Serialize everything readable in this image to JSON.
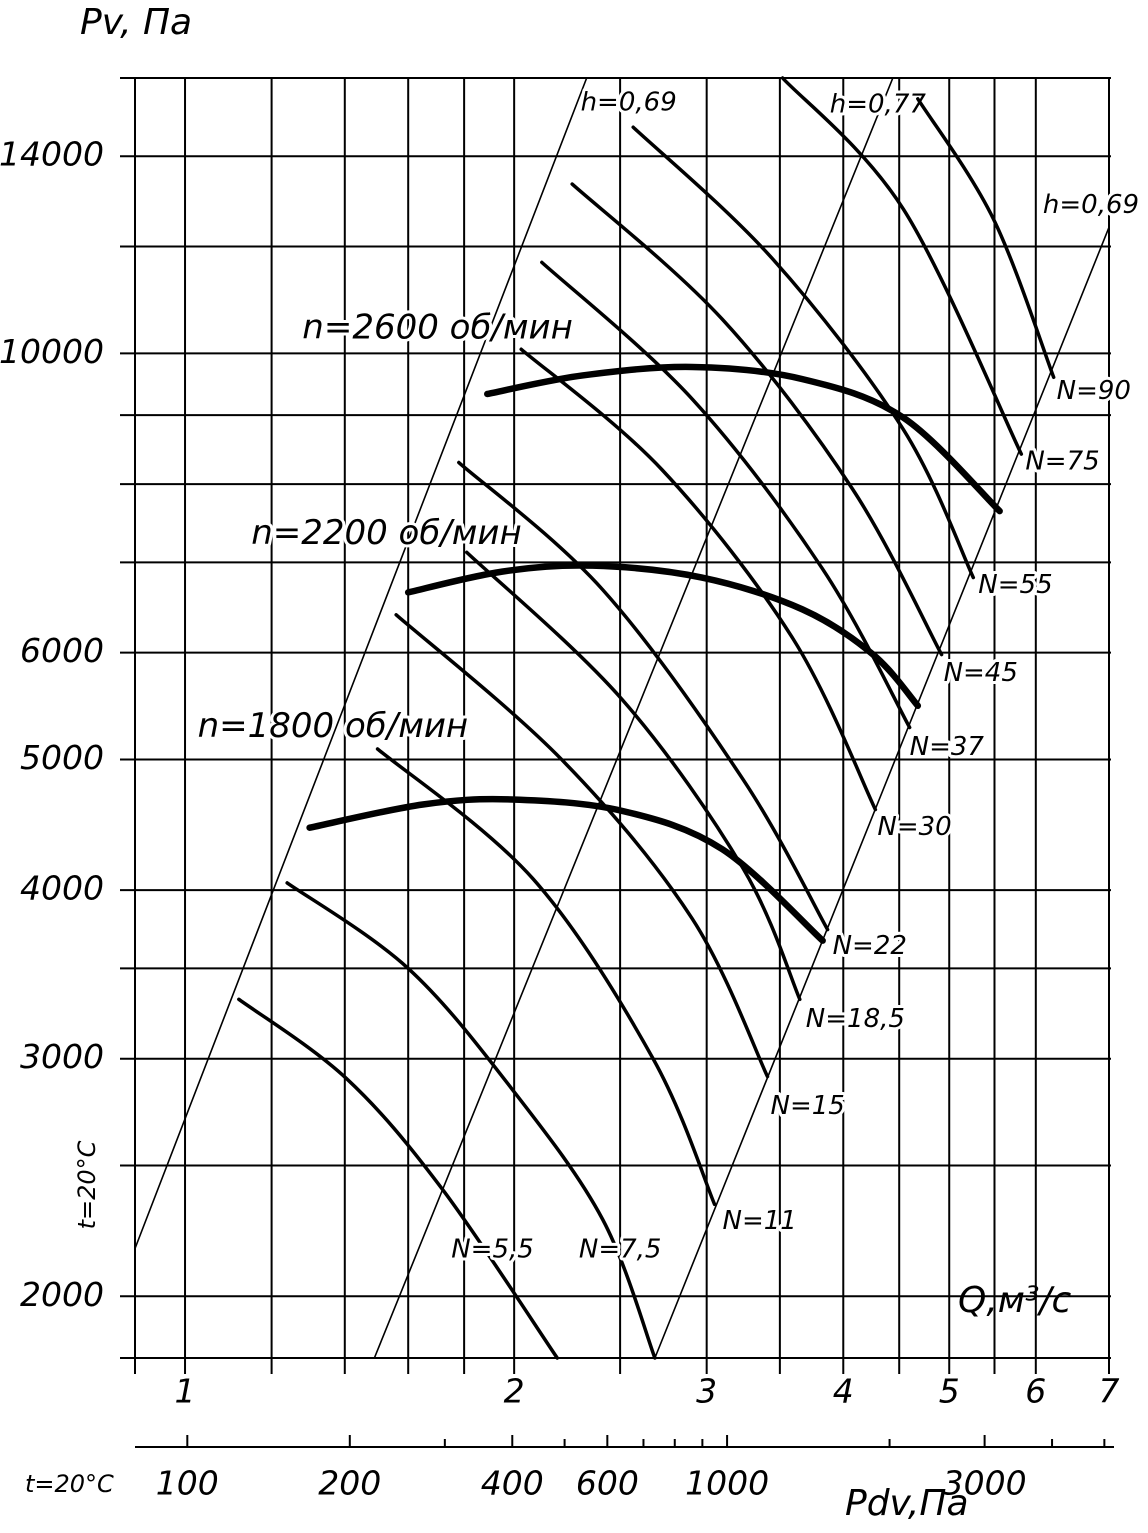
{
  "chart_data": {
    "type": "line",
    "y_label": "Pv, Па",
    "x_label": "Q,м³/с",
    "x2_label": "Pdv,Па",
    "temperature_labels": [
      "t=20°C",
      "t=20°C"
    ],
    "log_x": true,
    "log_y": true,
    "xlim": [
      0.9,
      7
    ],
    "xticks": [
      1,
      2,
      3,
      4,
      5,
      6,
      7
    ],
    "xgrid": [
      0.9,
      1,
      1.2,
      1.4,
      1.6,
      1.8,
      2,
      2.5,
      3,
      3.5,
      4,
      4.5,
      5,
      5.5,
      6,
      7
    ],
    "ylim": [
      1800,
      16000
    ],
    "yticks": [
      2000,
      3000,
      4000,
      5000,
      6000,
      10000,
      14000
    ],
    "ygrid": [
      1800,
      2000,
      2500,
      3000,
      3500,
      4000,
      5000,
      6000,
      7000,
      8000,
      9000,
      10000,
      12000,
      14000,
      16000
    ],
    "x2lim": [
      80,
      5100
    ],
    "x2ticks": [
      100,
      200,
      400,
      600,
      1000,
      3000
    ],
    "x2minor": [
      300,
      500,
      700,
      800,
      900,
      2000,
      4000,
      5000
    ],
    "color": "#000000",
    "power_curves": [
      {
        "name": "N=5,5",
        "x": [
          1.12,
          1.405,
          1.72,
          2.19
        ],
        "values": [
          3320,
          2900,
          2400,
          1800
        ]
      },
      {
        "name": "N=7,5",
        "x": [
          1.24,
          1.6,
          1.99,
          2.41,
          2.69
        ],
        "values": [
          4050,
          3500,
          2850,
          2280,
          1800
        ]
      },
      {
        "name": "N=11",
        "x": [
          1.5,
          2.08,
          2.68,
          3.05
        ],
        "values": [
          5090,
          4080,
          3000,
          2340
        ]
      },
      {
        "name": "N=15",
        "x": [
          1.56,
          2.21,
          2.91,
          3.41
        ],
        "values": [
          6400,
          5000,
          3810,
          2910
        ]
      },
      {
        "name": "N=18,5",
        "x": [
          1.81,
          2.51,
          3.24,
          3.65
        ],
        "values": [
          7120,
          5540,
          4150,
          3320
        ]
      },
      {
        "name": "N=22",
        "x": [
          1.78,
          2.41,
          3.24,
          3.87
        ],
        "values": [
          8300,
          6680,
          4830,
          3740
        ]
      },
      {
        "name": "N=30",
        "x": [
          2.03,
          2.73,
          3.6,
          4.28
        ],
        "values": [
          10070,
          8200,
          6140,
          4590
        ]
      },
      {
        "name": "N=37",
        "x": [
          2.12,
          2.91,
          3.83,
          4.6
        ],
        "values": [
          11680,
          9250,
          6920,
          5280
        ]
      },
      {
        "name": "N=45",
        "x": [
          2.26,
          3.1,
          4.08,
          4.92
        ],
        "values": [
          13350,
          10600,
          7930,
          5980
        ]
      },
      {
        "name": "N=55",
        "x": [
          2.57,
          3.45,
          4.54,
          5.26
        ],
        "values": [
          14710,
          11740,
          8780,
          6820
        ]
      },
      {
        "name": "N=75",
        "x": [
          3.52,
          4.54,
          5.82
        ],
        "values": [
          16000,
          12790,
          8420
        ]
      },
      {
        "name": "N=90",
        "x": [
          4.68,
          5.49,
          6.23
        ],
        "values": [
          15440,
          12570,
          9600
        ]
      }
    ],
    "speed_curves": [
      {
        "name": "n=1800 об/мин",
        "x": [
          1.3,
          1.65,
          1.99,
          2.51,
          3.1,
          3.83
        ],
        "values": [
          4450,
          4630,
          4670,
          4580,
          4290,
          3670
        ]
      },
      {
        "name": "n=2200 об/мин",
        "x": [
          1.6,
          1.95,
          2.36,
          2.97,
          3.67,
          4.26,
          4.68
        ],
        "values": [
          6650,
          6890,
          6960,
          6820,
          6460,
          5980,
          5480
        ]
      },
      {
        "name": "n=2600 об/мин",
        "x": [
          1.89,
          2.31,
          2.91,
          3.67,
          4.54,
          5.56
        ],
        "values": [
          9330,
          9630,
          9770,
          9570,
          8960,
          7640
        ]
      }
    ],
    "efficiency_lines": [
      {
        "name": "h=0,69",
        "x": [
          0.9,
          2.33
        ],
        "values": [
          2170,
          16000
        ]
      },
      {
        "name": "h=0,77",
        "x": [
          1.49,
          4.44
        ],
        "values": [
          1800,
          16000
        ]
      },
      {
        "name": "h=0,69",
        "x": [
          2.69,
          7
        ],
        "values": [
          1800,
          12400
        ]
      }
    ]
  }
}
